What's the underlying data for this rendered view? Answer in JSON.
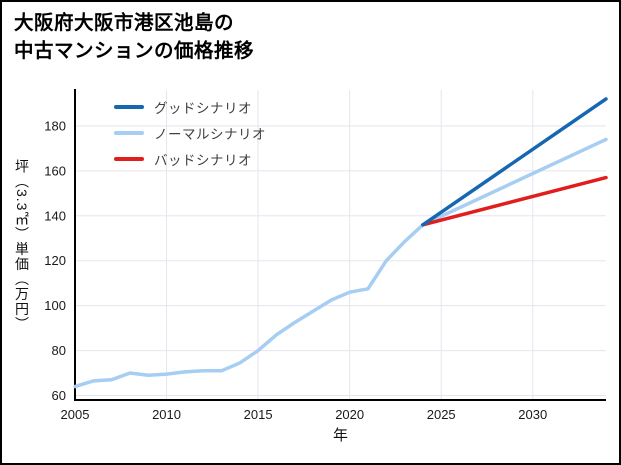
{
  "header": {
    "title_line1": "大阪府大阪市港区池島の",
    "title_line2": "中古マンションの価格推移"
  },
  "chart_data": {
    "type": "line",
    "title": "大阪府大阪市港区池島の中古マンションの価格推移",
    "xlabel": "年",
    "ylabel": "坪（3.3㎡）単価（万円）",
    "xlim": [
      2005,
      2034
    ],
    "ylim": [
      58,
      196
    ],
    "xticks": [
      2005,
      2010,
      2015,
      2020,
      2025,
      2030
    ],
    "yticks": [
      60,
      80,
      100,
      120,
      140,
      160,
      180
    ],
    "grid": true,
    "grid_color": "#e5e5ee",
    "axis_color": "#000000",
    "tick_color": "#1a1a1a",
    "legend_position": "upper-left-inside",
    "legend": [
      {
        "label": "グッドシナリオ",
        "color": "#1667b1"
      },
      {
        "label": "ノーマルシナリオ",
        "color": "#a6cdf2"
      },
      {
        "label": "バッドシナリオ",
        "color": "#e11d1d"
      }
    ],
    "series": [
      {
        "name": "ノーマルシナリオ",
        "color": "#a6cdf2",
        "x": [
          2005,
          2006,
          2007,
          2008,
          2009,
          2010,
          2011,
          2012,
          2013,
          2014,
          2015,
          2016,
          2017,
          2018,
          2019,
          2020,
          2021,
          2022,
          2023,
          2024,
          2034
        ],
        "y": [
          64,
          66.5,
          67,
          70,
          69,
          69.5,
          70.5,
          71,
          71,
          74.5,
          80,
          87,
          92.5,
          97.5,
          102.5,
          106,
          107.5,
          120,
          128.5,
          136,
          174
        ]
      },
      {
        "name": "バッドシナリオ",
        "color": "#e11d1d",
        "x": [
          2024,
          2034
        ],
        "y": [
          136,
          157
        ]
      },
      {
        "name": "グッドシナリオ",
        "color": "#1667b1",
        "x": [
          2024,
          2034
        ],
        "y": [
          136,
          192
        ]
      }
    ]
  }
}
